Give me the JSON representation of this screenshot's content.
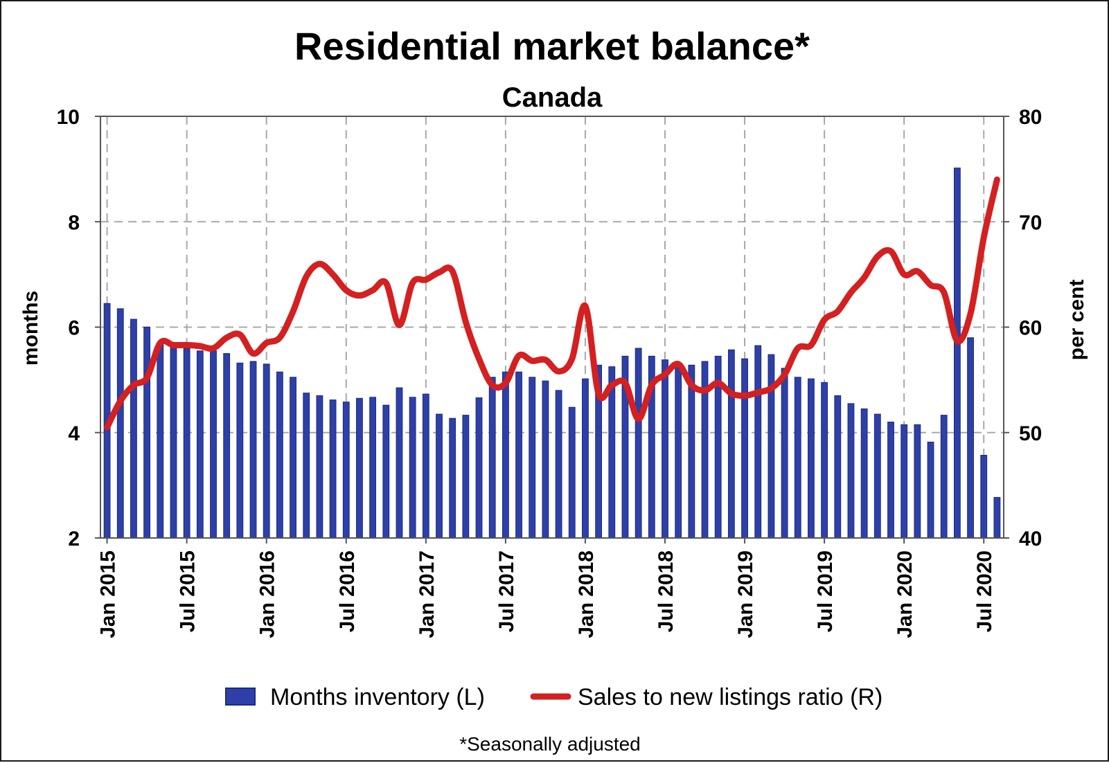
{
  "chart_data": {
    "type": "bar",
    "title": "Residential market balance*",
    "subtitle": "Canada",
    "footnote": "*Seasonally adjusted",
    "y_left": {
      "label": "months",
      "lim": [
        2,
        10
      ],
      "ticks": [
        "2",
        "4",
        "6",
        "8",
        "10"
      ]
    },
    "y_right": {
      "label": "per cent",
      "lim": [
        40,
        80
      ],
      "ticks": [
        "40",
        "50",
        "60",
        "70",
        "80"
      ]
    },
    "x_ticks": [
      "Jan 2015",
      "Jul 2015",
      "Jan 2016",
      "Jul 2016",
      "Jan 2017",
      "Jul 2017",
      "Jan 2018",
      "Jul 2018",
      "Jan 2019",
      "Jul 2019",
      "Jan 2020",
      "Jul 2020"
    ],
    "grid": true,
    "legend": {
      "placement": "bottom"
    },
    "colors": {
      "bars": "#2e40a8",
      "bar_edge": "#1a2a80",
      "line": "#d42020",
      "grid": "#a8a8a8"
    },
    "series": [
      {
        "name": "Months inventory (L)",
        "type": "bar",
        "axis": "left",
        "values": [
          6.45,
          6.35,
          6.15,
          6.0,
          5.7,
          5.65,
          5.6,
          5.55,
          5.55,
          5.5,
          5.32,
          5.35,
          5.3,
          5.15,
          5.05,
          4.75,
          4.7,
          4.62,
          4.58,
          4.65,
          4.67,
          4.52,
          4.85,
          4.67,
          4.73,
          4.35,
          4.27,
          4.33,
          4.66,
          5.05,
          5.15,
          5.15,
          5.05,
          4.98,
          4.8,
          4.48,
          5.02,
          5.28,
          5.25,
          5.45,
          5.6,
          5.45,
          5.38,
          5.25,
          5.28,
          5.35,
          5.45,
          5.57,
          5.4,
          5.65,
          5.48,
          5.22,
          5.05,
          5.02,
          4.95,
          4.7,
          4.55,
          4.45,
          4.35,
          4.2,
          4.15,
          4.15,
          3.82,
          4.33,
          9.02,
          5.8,
          3.57,
          2.77
        ]
      },
      {
        "name": "Sales to new listings ratio (R)",
        "type": "line",
        "axis": "right",
        "values": [
          50.5,
          53.0,
          54.5,
          55.2,
          58.5,
          58.3,
          58.3,
          58.2,
          58.0,
          59.0,
          59.3,
          57.5,
          58.5,
          59.0,
          61.5,
          64.8,
          66.0,
          65.0,
          63.5,
          63.0,
          63.5,
          64.2,
          60.2,
          64.2,
          64.5,
          65.2,
          65.3,
          60.5,
          57.0,
          54.5,
          54.7,
          57.3,
          56.8,
          56.9,
          55.8,
          57.0,
          62.0,
          53.7,
          54.5,
          54.7,
          51.3,
          54.5,
          55.5,
          56.5,
          54.5,
          54.0,
          54.7,
          53.7,
          53.5,
          53.8,
          54.2,
          55.5,
          58.0,
          58.3,
          60.7,
          61.5,
          63.3,
          64.7,
          66.7,
          67.2,
          65.0,
          65.3,
          64.0,
          63.3,
          58.7,
          61.3,
          68.5,
          74.0
        ]
      }
    ]
  }
}
